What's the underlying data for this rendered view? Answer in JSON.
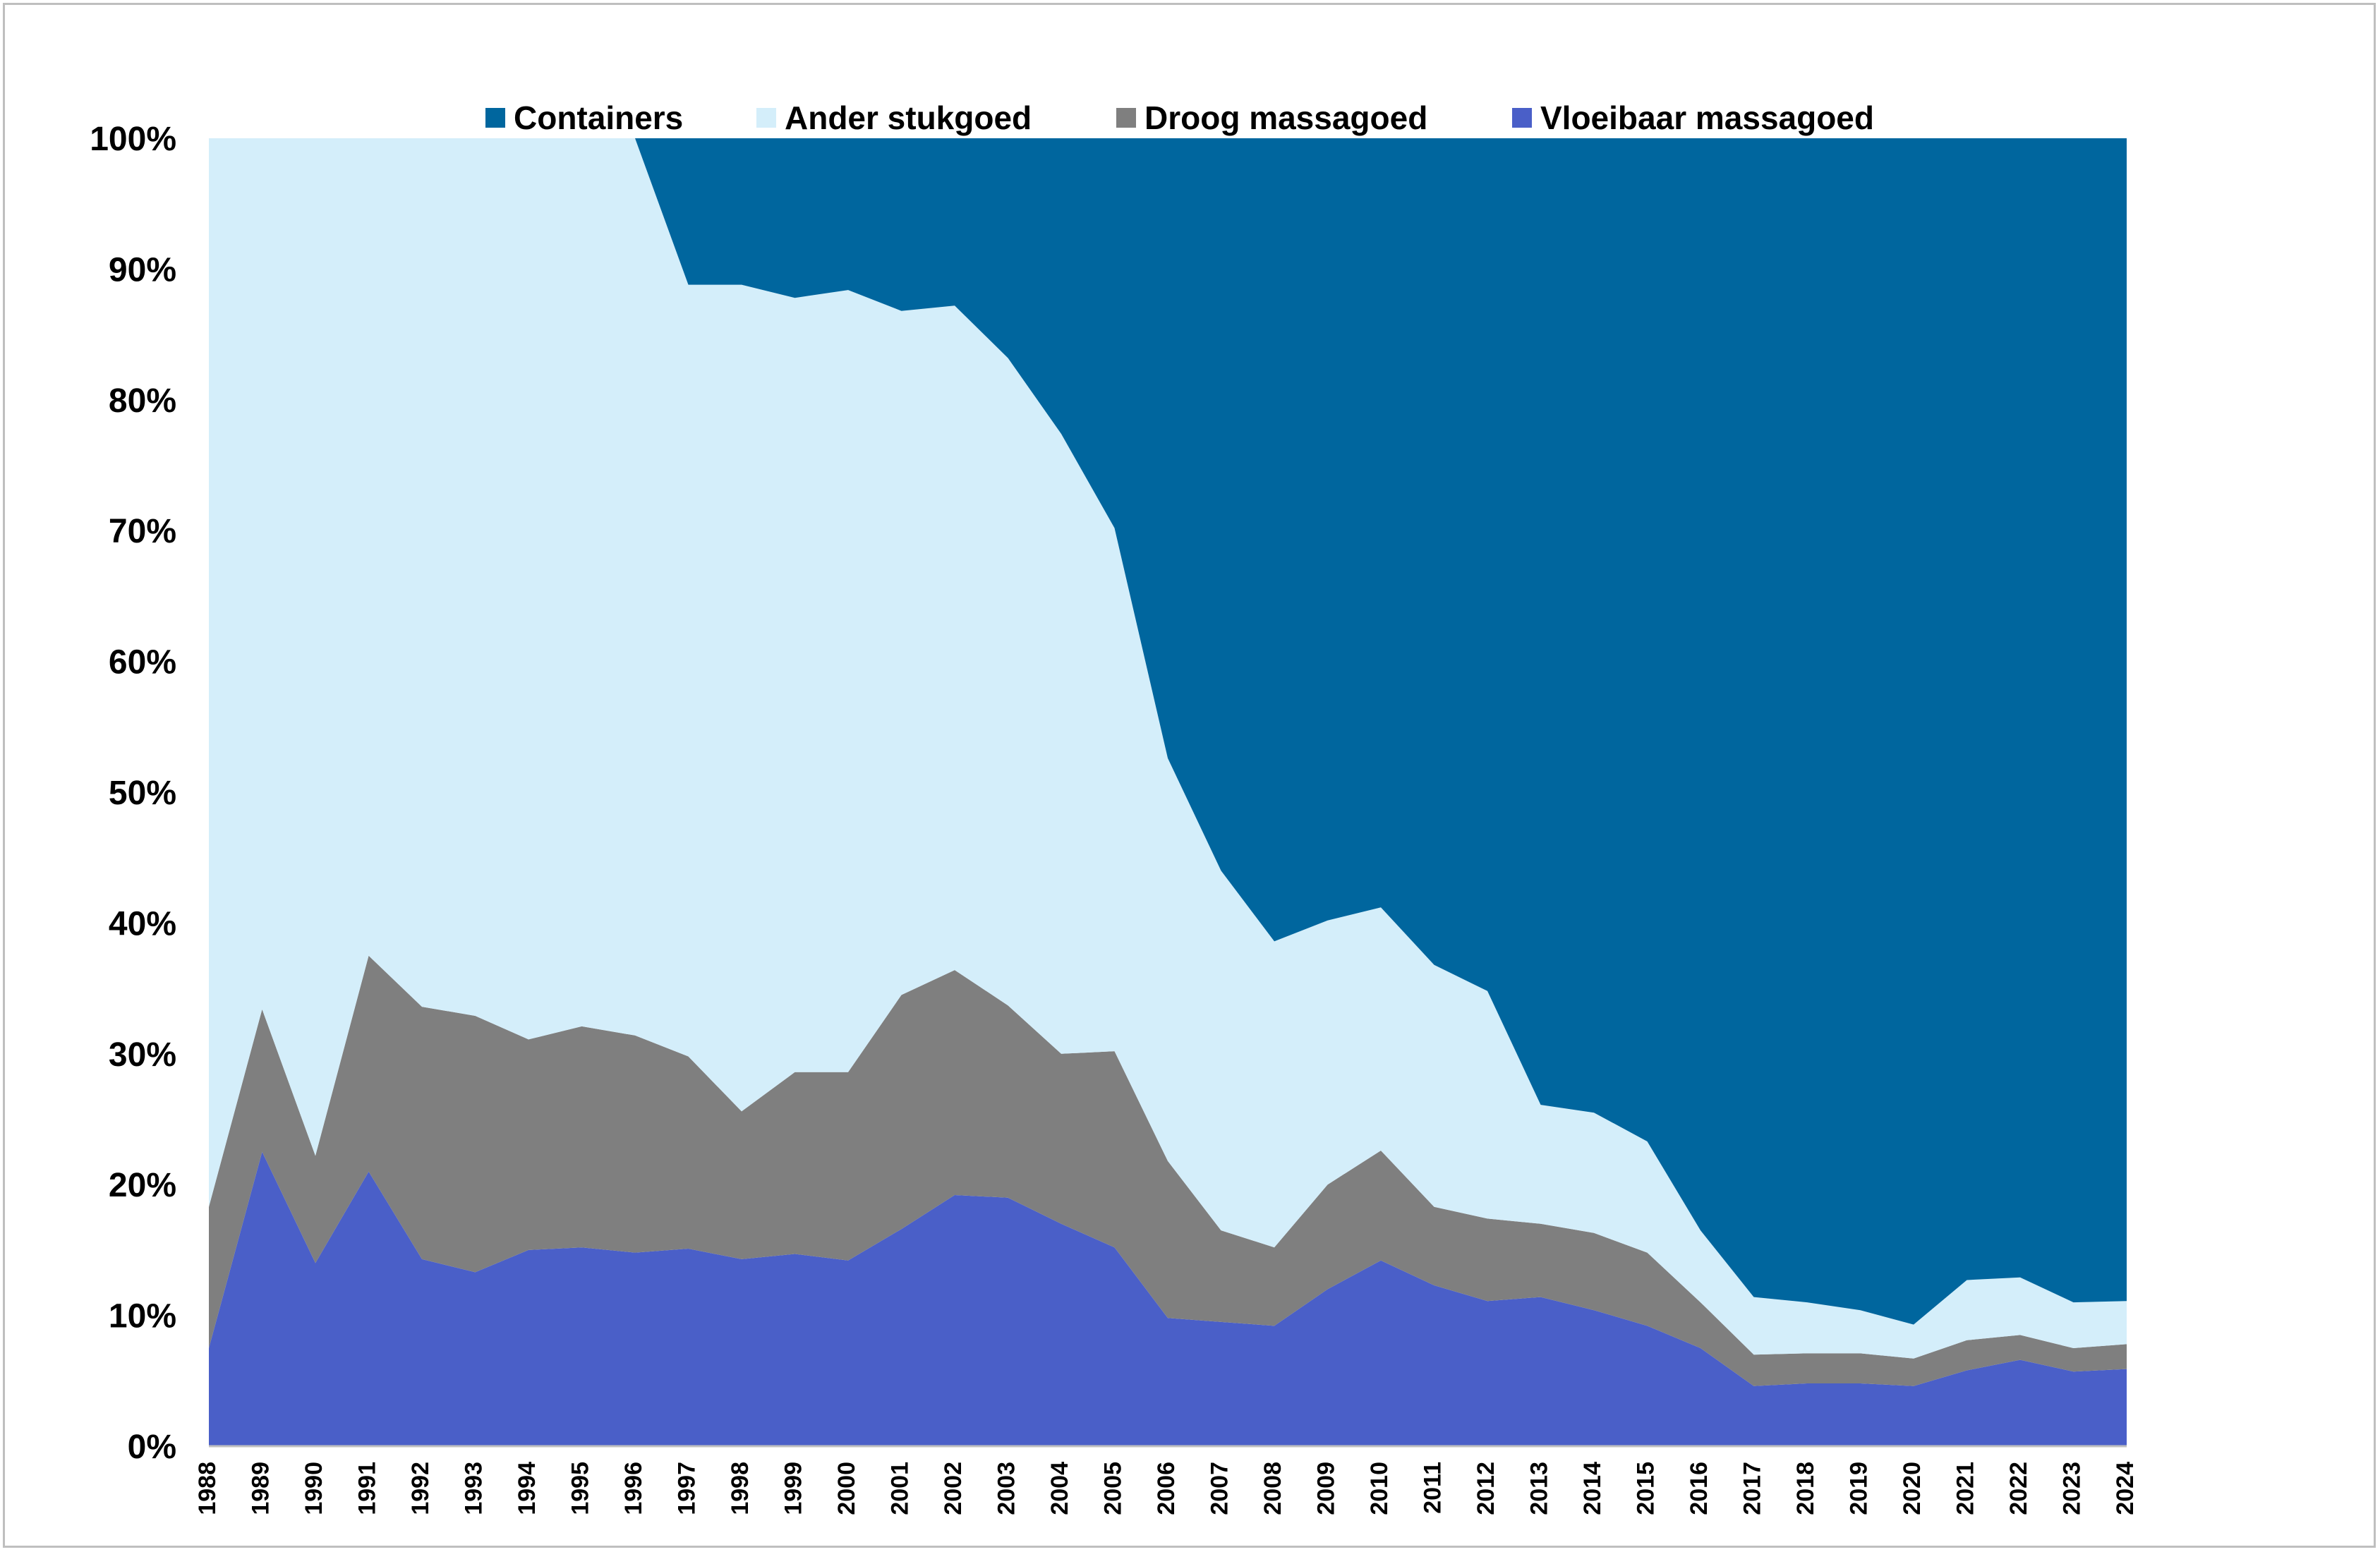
{
  "chart_data": {
    "type": "area",
    "stacked": true,
    "percent_stacked": true,
    "legend": {
      "placement": "top",
      "entries": [
        "Containers",
        "Ander stukgoed",
        "Droog massagoed",
        "Vloeibaar massagoed"
      ]
    },
    "x": [
      "1988",
      "1989",
      "1990",
      "1991",
      "1992",
      "1993",
      "1994",
      "1995",
      "1996",
      "1997",
      "1998",
      "1999",
      "2000",
      "2001",
      "2002",
      "2003",
      "2004",
      "2005",
      "2006",
      "2007",
      "2008",
      "2009",
      "2010",
      "2011",
      "2012",
      "2013",
      "2014",
      "2015",
      "2016",
      "2017",
      "2018",
      "2019",
      "2020",
      "2021",
      "2022",
      "2023",
      "2024"
    ],
    "y_ticks": [
      "0%",
      "10%",
      "20%",
      "30%",
      "40%",
      "50%",
      "60%",
      "70%",
      "80%",
      "90%",
      "100%"
    ],
    "ylim": [
      0,
      100
    ],
    "grid": false,
    "series": [
      {
        "name": "Vloeibaar massagoed",
        "color": "#4a5fc8",
        "values": [
          7.5,
          22.5,
          14,
          21,
          14.3,
          13.3,
          15,
          15.2,
          14.8,
          15.1,
          14.3,
          14.7,
          14.2,
          16.6,
          19.2,
          19,
          17,
          15.2,
          9.8,
          9.5,
          9.2,
          12,
          14.2,
          12.3,
          11.1,
          11.4,
          10.4,
          9.2,
          7.5,
          4.6,
          4.8,
          4.8,
          4.6,
          5.8,
          6.6,
          5.7,
          5.9
        ]
      },
      {
        "name": "Droog massagoed",
        "color": "#7f7f7f",
        "values": [
          10.8,
          10.9,
          8.2,
          16.5,
          19.3,
          19.6,
          16.1,
          16.9,
          16.6,
          14.7,
          11.3,
          13.9,
          14.4,
          17.9,
          17.2,
          14.7,
          13,
          15,
          12,
          7,
          6,
          8,
          8.4,
          6,
          6.3,
          5.6,
          5.9,
          5.6,
          3.5,
          2.4,
          2.3,
          2.3,
          2.1,
          2.3,
          1.9,
          1.8,
          1.9
        ]
      },
      {
        "name": "Ander stukgoed",
        "color": "#d4eefa",
        "values": [
          81.7,
          66.6,
          77.8,
          62.5,
          66.4,
          67.1,
          68.9,
          67.9,
          68.6,
          59,
          63.2,
          59.2,
          59.8,
          52.3,
          50.8,
          49.5,
          47.4,
          40,
          30.8,
          27.5,
          23.4,
          20.2,
          18.6,
          18.5,
          17.4,
          9.1,
          9.2,
          8.5,
          5.5,
          4.4,
          3.9,
          3.3,
          2.6,
          4.6,
          4.4,
          3.5,
          3.3
        ]
      },
      {
        "name": "Containers",
        "color": "#00669e",
        "values": [
          0,
          0,
          0,
          0,
          0,
          0,
          0,
          0,
          0,
          11.2,
          11.2,
          12.2,
          11.6,
          13.2,
          12.8,
          16.8,
          22.6,
          29.8,
          47.4,
          56,
          61.4,
          59.8,
          58.8,
          63.2,
          65.2,
          73.9,
          74.5,
          76.7,
          83.5,
          88.6,
          89,
          89.6,
          90.7,
          87.3,
          87.1,
          89,
          88.9
        ]
      }
    ]
  }
}
